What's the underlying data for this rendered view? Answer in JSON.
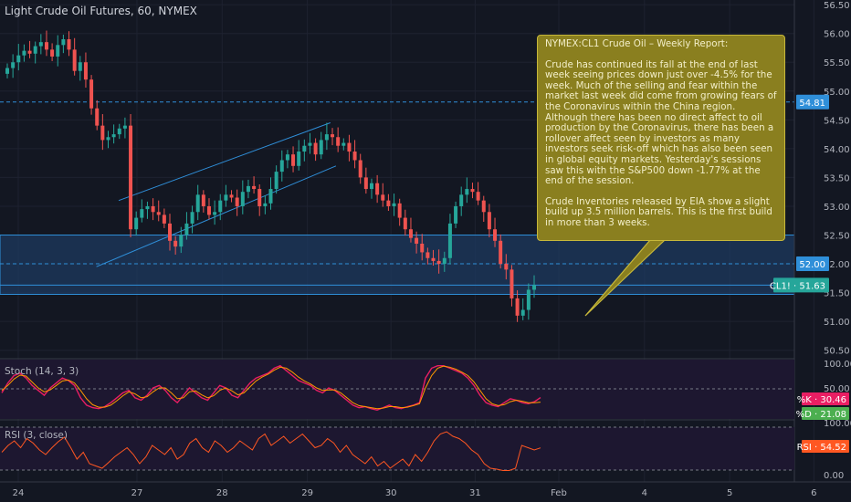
{
  "header": {
    "symbol_title": "Light Crude Oil Futures, 60, NYMEX"
  },
  "colors": {
    "background": "#131722",
    "up": "#26a69a",
    "down": "#ef5350",
    "channel": "#2f8fd9",
    "zone_fill": "#1e3a5f",
    "stoch_k": "#e91e63",
    "stoch_d": "#ff9800",
    "rsi": "#ff5722",
    "note_bg": "#8a7f1f"
  },
  "note": {
    "heading": "NYMEX:CL1 Crude Oil – Weekly Report:",
    "paragraph_1": "Crude has continued its fall at the end of last week seeing prices down just over -4.5% for the week. Much of the selling and fear within the market last week did come from growing fears of the Coronavirus within the China region. Although there has been no direct affect to oil production by the Coronavirus, there has been a rollover affect seen by investors as many investors seek risk-off which has also been seen in global equity markets. Yesterday's sessions saw this with the S&P500 down -1.77% at the end of the session.",
    "paragraph_2": "Crude Inventories released by EIA show a slight build up 3.5 million barrels. This is the first build in more than 3 weeks."
  },
  "chart_data": [
    {
      "type": "candlestick",
      "title": "Light Crude Oil Futures, 60, NYMEX",
      "x_ticks": [
        "24",
        "27",
        "28",
        "29",
        "30",
        "31",
        "Feb",
        "4",
        "5",
        "6"
      ],
      "y_ticks": [
        "50.50",
        "51.00",
        "51.50",
        "52.00",
        "52.50",
        "53.00",
        "53.50",
        "54.00",
        "54.50",
        "55.00",
        "55.50",
        "56.00",
        "56.50"
      ],
      "ylim": [
        50.4,
        56.55
      ],
      "closes": [
        55.4,
        55.5,
        55.62,
        55.7,
        55.65,
        55.78,
        55.85,
        55.72,
        55.6,
        55.8,
        55.9,
        55.72,
        55.35,
        55.5,
        55.2,
        54.7,
        54.4,
        54.15,
        54.2,
        54.25,
        54.35,
        54.4,
        52.6,
        52.8,
        52.95,
        53.0,
        52.9,
        52.85,
        52.7,
        52.4,
        52.3,
        52.5,
        52.7,
        52.9,
        53.2,
        53.0,
        52.85,
        52.9,
        53.1,
        53.2,
        53.15,
        53.0,
        53.25,
        53.35,
        53.3,
        53.0,
        53.05,
        53.3,
        53.6,
        53.8,
        53.9,
        53.7,
        53.95,
        54.05,
        54.1,
        53.9,
        54.15,
        54.25,
        54.2,
        54.05,
        54.1,
        53.95,
        53.8,
        53.5,
        53.3,
        53.4,
        53.2,
        53.1,
        53.0,
        53.05,
        52.8,
        52.6,
        52.45,
        52.35,
        52.2,
        52.1,
        52.05,
        52.0,
        52.1,
        52.7,
        53.0,
        53.2,
        53.3,
        53.25,
        53.1,
        52.9,
        52.6,
        52.4,
        52.0,
        51.9,
        51.4,
        51.1,
        51.2,
        51.55,
        51.63
      ],
      "price_tags": [
        {
          "label": "54.81",
          "value": 54.81,
          "color": "#2f8fd9"
        },
        {
          "label": "52.00",
          "value": 52.0,
          "color": "#2f8fd9"
        },
        {
          "label": "CL1! · 51.63",
          "value": 51.63,
          "color": "#26a69a"
        }
      ],
      "horizontal_lines": [
        54.81,
        52.0,
        51.63
      ],
      "zone": [
        51.47,
        52.5
      ],
      "channel_upper": {
        "start": [
          36,
          53.1
        ],
        "end": [
          65,
          54.45
        ]
      },
      "channel_lower": {
        "start": [
          32,
          51.95
        ],
        "end": [
          66,
          53.7
        ]
      },
      "arrow_note": "from callout to price",
      "grid": true
    },
    {
      "type": "line",
      "title": "Stoch (14, 3, 3)",
      "y_ticks": [
        "100.00",
        "50.00"
      ],
      "ylim": [
        0,
        100
      ],
      "series": [
        {
          "name": "%K",
          "label": "%K · 30.46",
          "color": "#e91e63",
          "values": [
            40,
            60,
            75,
            80,
            70,
            55,
            45,
            35,
            50,
            60,
            70,
            65,
            55,
            30,
            15,
            10,
            8,
            12,
            20,
            30,
            40,
            45,
            30,
            25,
            35,
            50,
            55,
            45,
            30,
            20,
            35,
            50,
            40,
            30,
            25,
            40,
            55,
            50,
            35,
            30,
            45,
            60,
            70,
            75,
            80,
            90,
            95,
            85,
            75,
            65,
            60,
            55,
            45,
            40,
            50,
            45,
            35,
            25,
            15,
            10,
            12,
            8,
            5,
            10,
            15,
            10,
            8,
            12,
            15,
            20,
            70,
            90,
            95,
            95,
            90,
            85,
            80,
            70,
            55,
            35,
            20,
            15,
            12,
            20,
            28,
            25,
            20,
            18,
            22,
            30.46
          ]
        },
        {
          "name": "%D",
          "label": "%D · 21.08",
          "color": "#ff9800",
          "values": [
            45,
            55,
            68,
            76,
            74,
            62,
            50,
            42,
            46,
            55,
            64,
            66,
            60,
            45,
            28,
            16,
            11,
            11,
            15,
            24,
            34,
            42,
            38,
            30,
            32,
            42,
            50,
            50,
            40,
            28,
            30,
            42,
            44,
            36,
            30,
            34,
            45,
            50,
            44,
            36,
            40,
            52,
            64,
            72,
            78,
            86,
            92,
            90,
            82,
            72,
            64,
            58,
            50,
            45,
            46,
            46,
            40,
            30,
            20,
            14,
            12,
            10,
            8,
            9,
            12,
            12,
            10,
            11,
            14,
            18,
            50,
            75,
            90,
            94,
            92,
            88,
            82,
            75,
            62,
            45,
            28,
            18,
            14,
            16,
            22,
            25,
            23,
            20,
            20,
            21.08
          ]
        }
      ]
    },
    {
      "type": "line",
      "title": "RSI (3, close)",
      "y_ticks": [
        "100.00",
        "0.00"
      ],
      "ylim": [
        0,
        100
      ],
      "series": [
        {
          "name": "RSI",
          "label": "RSI · 54.52",
          "color": "#ff5722",
          "values": [
            45,
            60,
            70,
            55,
            75,
            65,
            50,
            40,
            55,
            68,
            78,
            55,
            30,
            45,
            20,
            15,
            10,
            22,
            35,
            45,
            55,
            40,
            20,
            35,
            60,
            50,
            40,
            55,
            30,
            40,
            65,
            75,
            55,
            45,
            70,
            60,
            45,
            55,
            70,
            60,
            50,
            75,
            85,
            60,
            70,
            80,
            65,
            75,
            85,
            70,
            55,
            60,
            75,
            65,
            45,
            60,
            40,
            30,
            20,
            35,
            15,
            25,
            10,
            20,
            30,
            15,
            40,
            25,
            45,
            70,
            85,
            90,
            80,
            75,
            65,
            50,
            40,
            20,
            10,
            8,
            5,
            5,
            10,
            60,
            55,
            50,
            54.52
          ]
        }
      ]
    }
  ]
}
